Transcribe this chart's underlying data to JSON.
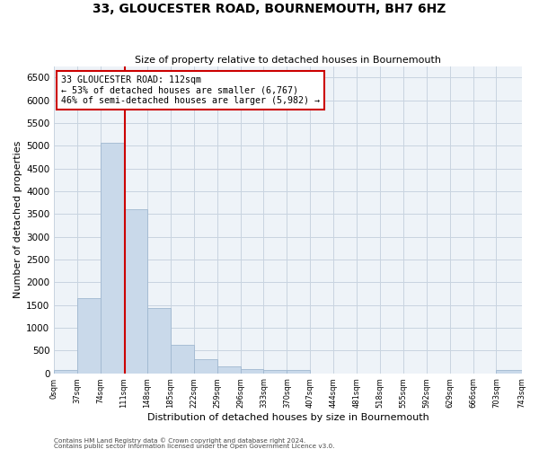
{
  "title": "33, GLOUCESTER ROAD, BOURNEMOUTH, BH7 6HZ",
  "subtitle": "Size of property relative to detached houses in Bournemouth",
  "xlabel": "Distribution of detached houses by size in Bournemouth",
  "ylabel": "Number of detached properties",
  "bin_edges": [
    0,
    37,
    74,
    111,
    148,
    185,
    222,
    259,
    296,
    333,
    370,
    407,
    444,
    481,
    518,
    555,
    592,
    629,
    666,
    703,
    743
  ],
  "bar_heights": [
    75,
    1650,
    5075,
    3600,
    1425,
    625,
    300,
    150,
    100,
    75,
    75,
    0,
    0,
    0,
    0,
    0,
    0,
    0,
    0,
    75
  ],
  "bar_color": "#c9d9ea",
  "bar_edge_color": "#a0b8d0",
  "property_line_x": 112,
  "property_line_color": "#cc0000",
  "annotation_text": "33 GLOUCESTER ROAD: 112sqm\n← 53% of detached houses are smaller (6,767)\n46% of semi-detached houses are larger (5,982) →",
  "annotation_box_color": "#cc0000",
  "ylim": [
    0,
    6750
  ],
  "yticks": [
    0,
    500,
    1000,
    1500,
    2000,
    2500,
    3000,
    3500,
    4000,
    4500,
    5000,
    5500,
    6000,
    6500
  ],
  "grid_color": "#c8d4e0",
  "background_color": "#eef3f8",
  "footer_line1": "Contains HM Land Registry data © Crown copyright and database right 2024.",
  "footer_line2": "Contains public sector information licensed under the Open Government Licence v3.0."
}
